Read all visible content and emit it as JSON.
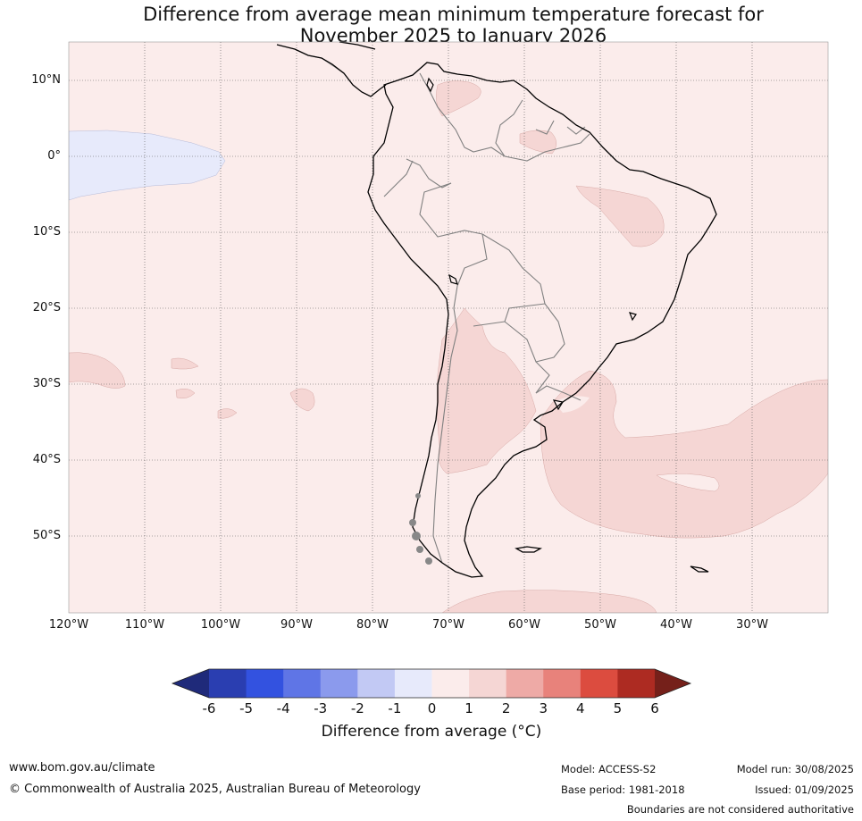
{
  "title_line1": "Difference from average mean minimum temperature forecast for",
  "title_line2": "November 2025 to January 2026",
  "latitude_labels": [
    "10°N",
    "0°",
    "10°S",
    "20°S",
    "30°S",
    "40°S",
    "50°S"
  ],
  "longitude_labels": [
    "120°W",
    "110°W",
    "100°W",
    "90°W",
    "80°W",
    "70°W",
    "60°W",
    "50°W",
    "40°W",
    "30°W"
  ],
  "colorbar": {
    "title": "Difference from average (°C)",
    "ticks": [
      "-6",
      "-5",
      "-4",
      "-3",
      "-2",
      "-1",
      "0",
      "1",
      "2",
      "3",
      "4",
      "5",
      "6"
    ],
    "colors": [
      "#1f2a7a",
      "#2a3eb1",
      "#3352e0",
      "#5f75e6",
      "#8b9aed",
      "#c2c9f4",
      "#e7eafb",
      "#fbeceb",
      "#f5d6d4",
      "#eeaaa6",
      "#e8827b",
      "#dc4c3f",
      "#ad2b22",
      "#75201a"
    ]
  },
  "legend_fields": {
    "ocean_land_base": "#fbeceb",
    "warm_1_2": "#f5d6d4",
    "cool_minus1_0": "#e7eafb"
  },
  "footer": {
    "website": "www.bom.gov.au/climate",
    "copyright": "© Commonwealth of Australia 2025, Australian Bureau of Meteorology",
    "model": "Model: ACCESS-S2",
    "base_period": "Base period: 1981-2018",
    "model_run": "Model run: 30/08/2025",
    "issued": "Issued: 01/09/2025",
    "boundaries_note": "Boundaries are not considered authoritative"
  }
}
